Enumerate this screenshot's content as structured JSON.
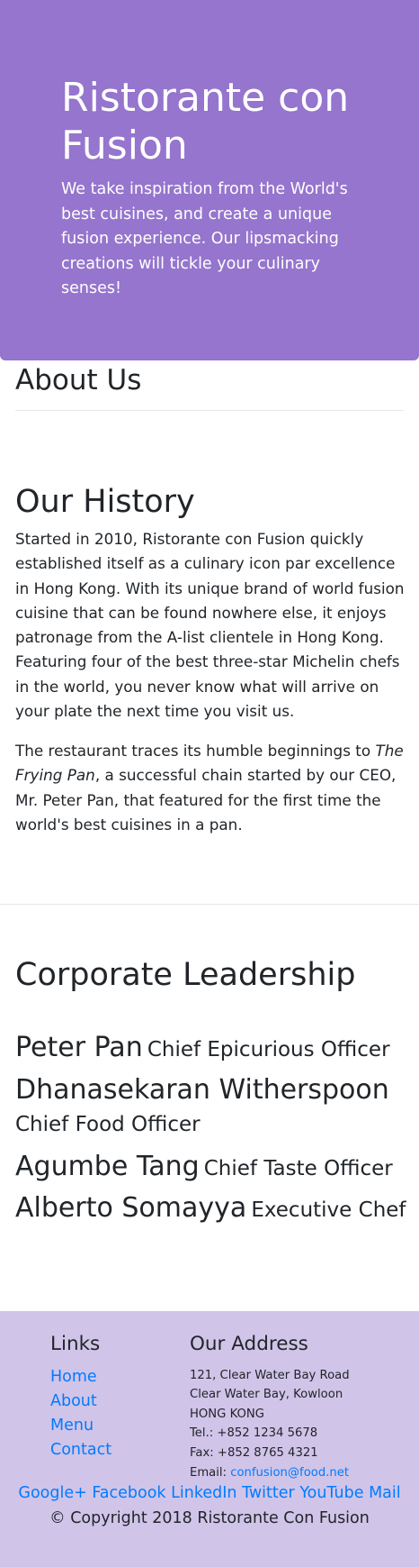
{
  "jumbotron": {
    "title": "Ristorante con Fusion",
    "tagline": "We take inspiration from the World's best cuisines, and create a unique fusion experience. Our lipsmacking creations will tickle your culinary senses!",
    "background": "#9575cd"
  },
  "about": {
    "heading": "About Us"
  },
  "history": {
    "heading": "Our History",
    "paragraph1": "Started in 2010, Ristorante con Fusion quickly established itself as a culinary icon par excellence in Hong Kong. With its unique brand of world fusion cuisine that can be found nowhere else, it enjoys patronage from the A-list clientele in Hong Kong. Featuring four of the best three-star Michelin chefs in the world, you never know what will arrive on your plate the next time you visit us.",
    "paragraph2_before": "The restaurant traces its humble beginnings to ",
    "paragraph2_em": "The Frying Pan",
    "paragraph2_after": ", a successful chain started by our CEO, Mr. Peter Pan, that featured for the first time the world's best cuisines in a pan."
  },
  "leadership": {
    "heading": "Corporate Leadership",
    "leaders": [
      {
        "name": "Peter Pan",
        "role": "Chief Epicurious Officer"
      },
      {
        "name": "Dhanasekaran Witherspoon",
        "role": "Chief Food Officer"
      },
      {
        "name": "Agumbe Tang",
        "role": "Chief Taste Officer"
      },
      {
        "name": "Alberto Somayya",
        "role": "Executive Chef"
      }
    ]
  },
  "footer": {
    "background": "#d1c4e9",
    "links_heading": "Links",
    "links": [
      "Home",
      "About",
      "Menu",
      "Contact"
    ],
    "address_heading": "Our Address",
    "address_lines": [
      "121, Clear Water Bay Road",
      "Clear Water Bay, Kowloon",
      "HONG KONG",
      "Tel.: +852 1234 5678",
      "Fax: +852 8765 4321"
    ],
    "email_label": "Email: ",
    "email": "confusion@food.net",
    "social": [
      "Google+",
      "Facebook",
      "LinkedIn",
      "Twitter",
      "YouTube",
      "Mail"
    ],
    "copyright": "© Copyright 2018 Ristorante Con Fusion"
  },
  "colors": {
    "link": "#007bff",
    "text": "#212529"
  }
}
